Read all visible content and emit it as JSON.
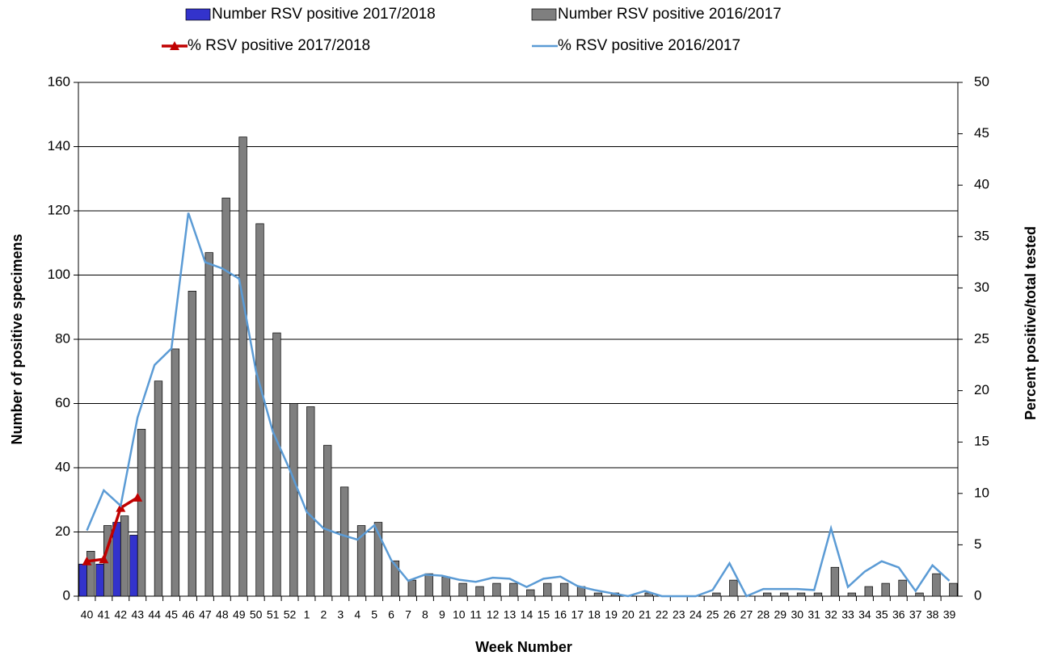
{
  "chart_data": {
    "type": "bar-line",
    "xlabel": "Week Number",
    "ylabel": "Number of positive specimens",
    "y2label": "Percent positive/total tested",
    "categories": [
      "40",
      "41",
      "42",
      "43",
      "44",
      "45",
      "46",
      "47",
      "48",
      "49",
      "50",
      "51",
      "52",
      "1",
      "2",
      "3",
      "4",
      "5",
      "6",
      "7",
      "8",
      "9",
      "10",
      "11",
      "12",
      "13",
      "14",
      "15",
      "16",
      "17",
      "18",
      "19",
      "20",
      "21",
      "22",
      "23",
      "24",
      "25",
      "26",
      "27",
      "28",
      "29",
      "30",
      "31",
      "32",
      "33",
      "34",
      "35",
      "36",
      "37",
      "38",
      "39"
    ],
    "ylim": [
      0,
      160
    ],
    "yticks": [
      0,
      20,
      40,
      60,
      80,
      100,
      120,
      140,
      160
    ],
    "y2lim": [
      0,
      50
    ],
    "y2ticks": [
      0,
      5,
      10,
      15,
      20,
      25,
      30,
      35,
      40,
      45,
      50
    ],
    "grid": true,
    "series": [
      {
        "name": "Number RSV positive 2017/2018",
        "type": "bar",
        "color": "#3333cc",
        "values": [
          10,
          10,
          23,
          19,
          null,
          null,
          null,
          null,
          null,
          null,
          null,
          null,
          null,
          null,
          null,
          null,
          null,
          null,
          null,
          null,
          null,
          null,
          null,
          null,
          null,
          null,
          null,
          null,
          null,
          null,
          null,
          null,
          null,
          null,
          null,
          null,
          null,
          null,
          null,
          null,
          null,
          null,
          null,
          null,
          null,
          null,
          null,
          null,
          null,
          null,
          null,
          null
        ]
      },
      {
        "name": "Number RSV positive 2016/2017",
        "type": "bar",
        "color": "#7f7f7f",
        "values": [
          14,
          22,
          25,
          52,
          67,
          77,
          95,
          107,
          124,
          143,
          116,
          82,
          60,
          59,
          47,
          34,
          22,
          23,
          11,
          5,
          7,
          6,
          4,
          3,
          4,
          4,
          2,
          4,
          4,
          3,
          1,
          1,
          0,
          1,
          0,
          0,
          0,
          1,
          5,
          0,
          1,
          1,
          1,
          1,
          9,
          1,
          3,
          4,
          5,
          1,
          7,
          4
        ]
      },
      {
        "name": "% RSV positive 2017/2018",
        "type": "line",
        "axis": "y2",
        "color": "#c00000",
        "marker": "triangle",
        "values": [
          3.4,
          3.6,
          8.6,
          9.6,
          null,
          null,
          null,
          null,
          null,
          null,
          null,
          null,
          null,
          null,
          null,
          null,
          null,
          null,
          null,
          null,
          null,
          null,
          null,
          null,
          null,
          null,
          null,
          null,
          null,
          null,
          null,
          null,
          null,
          null,
          null,
          null,
          null,
          null,
          null,
          null,
          null,
          null,
          null,
          null,
          null,
          null,
          null,
          null,
          null,
          null,
          null,
          null
        ]
      },
      {
        "name": "% RSV positive 2016/2017",
        "type": "line",
        "axis": "y2",
        "color": "#5b9bd5",
        "values": [
          6.4,
          10.3,
          8.8,
          17.4,
          22.5,
          24.1,
          37.3,
          32.5,
          31.9,
          30.9,
          21.9,
          16.0,
          12.3,
          8.2,
          6.6,
          6.0,
          5.5,
          6.9,
          3.5,
          1.5,
          2.1,
          2.0,
          1.6,
          1.4,
          1.8,
          1.7,
          0.9,
          1.7,
          1.9,
          1.0,
          0.6,
          0.3,
          0,
          0.5,
          0,
          0,
          0,
          0.6,
          3.2,
          0,
          0.7,
          0.7,
          0.7,
          0.6,
          6.6,
          0.9,
          2.4,
          3.4,
          2.8,
          0.5,
          3.0,
          1.5
        ]
      }
    ]
  }
}
